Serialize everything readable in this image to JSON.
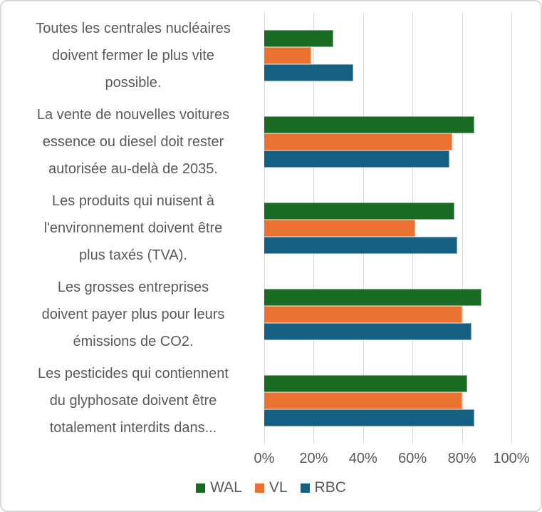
{
  "chart_data": {
    "type": "bar",
    "orientation": "horizontal",
    "title": "",
    "xlabel": "",
    "ylabel": "",
    "xlim": [
      0,
      100
    ],
    "grid": true,
    "legend_position": "bottom",
    "x_ticks": [
      "0%",
      "20%",
      "40%",
      "60%",
      "80%",
      "100%"
    ],
    "x_tick_values": [
      0,
      20,
      40,
      60,
      80,
      100
    ],
    "categories": [
      "Toutes les centrales nucléaires\ndoivent fermer le plus vite\npossible.",
      "La vente de nouvelles voitures\nessence ou diesel doit rester\nautorisée au-delà de 2035.",
      "Les produits qui nuisent à\nl'environnement doivent être\nplus taxés (TVA).",
      "Les grosses entreprises\ndoivent payer plus pour leurs\némissions de CO2.",
      "Les pesticides qui contiennent\ndu glyphosate doivent être\ntotalement interdits dans..."
    ],
    "series": [
      {
        "name": "WAL",
        "color": "#196B24",
        "values": [
          28,
          85,
          77,
          88,
          82
        ]
      },
      {
        "name": "VL",
        "color": "#E97132",
        "values": [
          19,
          76,
          61,
          80,
          80
        ]
      },
      {
        "name": "RBC",
        "color": "#156082",
        "values": [
          36,
          75,
          78,
          84,
          85
        ]
      }
    ]
  },
  "styles": {
    "text_color": "#595959",
    "gridline_color": "#D9D9D9",
    "frame_border_color": "#D9D9D9",
    "background": "#FFFFFF"
  }
}
